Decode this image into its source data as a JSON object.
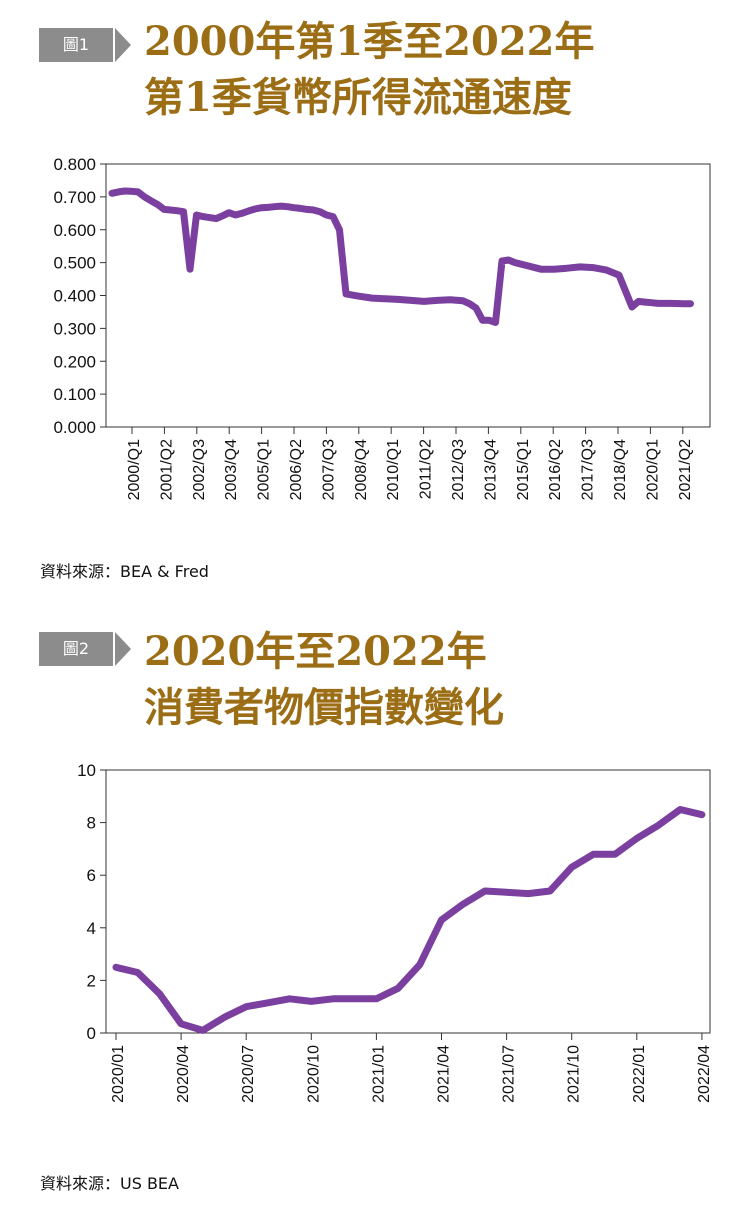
{
  "figures": [
    {
      "tag": "圖1",
      "title_line1": "2000年第1季至2022年",
      "title_line2": "第1季貨幣所得流通速度",
      "source": "資料來源：BEA & Fred"
    },
    {
      "tag": "圖2",
      "title_line1": "2020年至2022年",
      "title_line2": "消費者物價指數變化",
      "source": "資料來源：US BEA"
    }
  ],
  "chart_data": [
    {
      "type": "line",
      "title": "2000年第1季至2022年第1季貨幣所得流通速度",
      "xlabel": "",
      "ylabel": "",
      "ylim": [
        0,
        0.8
      ],
      "yticks": [
        "0.000",
        "0.100",
        "0.200",
        "0.300",
        "0.400",
        "0.500",
        "0.600",
        "0.700",
        "0.800"
      ],
      "categories": [
        "2000/Q1",
        "2001/Q2",
        "2002/Q3",
        "2003/Q4",
        "2005/Q1",
        "2006/Q2",
        "2007/Q3",
        "2008/Q4",
        "2010/Q1",
        "2011/Q2",
        "2012/Q3",
        "2013/Q4",
        "2015/Q1",
        "2016/Q2",
        "2017/Q3",
        "2018/Q4",
        "2020/Q1",
        "2021/Q2"
      ],
      "series_color": "#7b3fa0",
      "series": [
        {
          "name": "",
          "x": [
            2000.0,
            2000.25,
            2000.5,
            2000.75,
            2001.0,
            2001.25,
            2001.5,
            2001.75,
            2002.0,
            2002.25,
            2002.5,
            2002.75,
            2003.0,
            2003.25,
            2003.5,
            2003.75,
            2004.0,
            2004.25,
            2004.5,
            2004.75,
            2005.0,
            2005.25,
            2005.5,
            2005.75,
            2006.0,
            2006.25,
            2006.5,
            2006.75,
            2007.0,
            2007.25,
            2007.5,
            2007.75,
            2008.0,
            2008.25,
            2008.5,
            2008.75,
            2009.0,
            2009.5,
            2010.0,
            2010.5,
            2011.0,
            2011.5,
            2012.0,
            2012.5,
            2013.0,
            2013.5,
            2013.75,
            2014.0,
            2014.25,
            2014.5,
            2014.75,
            2015.0,
            2015.25,
            2015.5,
            2016.0,
            2016.5,
            2017.0,
            2017.5,
            2018.0,
            2018.5,
            2019.0,
            2019.5,
            2020.0,
            2020.25,
            2020.5,
            2020.75,
            2021.0,
            2021.5,
            2022.0,
            2022.25
          ],
          "values": [
            0.711,
            0.715,
            0.718,
            0.717,
            0.715,
            0.7,
            0.688,
            0.677,
            0.662,
            0.66,
            0.658,
            0.655,
            0.48,
            0.645,
            0.64,
            0.637,
            0.634,
            0.642,
            0.652,
            0.645,
            0.65,
            0.657,
            0.663,
            0.667,
            0.668,
            0.67,
            0.672,
            0.67,
            0.667,
            0.665,
            0.662,
            0.66,
            0.655,
            0.645,
            0.64,
            0.6,
            0.405,
            0.398,
            0.392,
            0.39,
            0.388,
            0.385,
            0.382,
            0.385,
            0.387,
            0.384,
            0.375,
            0.362,
            0.325,
            0.325,
            0.318,
            0.505,
            0.508,
            0.5,
            0.49,
            0.48,
            0.48,
            0.483,
            0.487,
            0.485,
            0.478,
            0.462,
            0.365,
            0.382,
            0.38,
            0.378,
            0.376,
            0.376,
            0.375,
            0.375
          ]
        }
      ]
    },
    {
      "type": "line",
      "title": "2020年至2022年消費者物價指數變化",
      "xlabel": "",
      "ylabel": "",
      "ylim": [
        0,
        10
      ],
      "yticks": [
        "0",
        "2",
        "4",
        "6",
        "8",
        "10"
      ],
      "categories": [
        "2020/01",
        "2020/04",
        "2020/07",
        "2020/10",
        "2021/01",
        "2021/04",
        "2021/07",
        "2021/10",
        "2022/01",
        "2022/04"
      ],
      "series_color": "#7b3fa0",
      "series": [
        {
          "name": "",
          "x": [
            "2020/01",
            "2020/02",
            "2020/03",
            "2020/04",
            "2020/05",
            "2020/06",
            "2020/07",
            "2020/08",
            "2020/09",
            "2020/10",
            "2020/11",
            "2020/12",
            "2021/01",
            "2021/02",
            "2021/03",
            "2021/04",
            "2021/05",
            "2021/06",
            "2021/07",
            "2021/08",
            "2021/09",
            "2021/10",
            "2021/11",
            "2021/12",
            "2022/01",
            "2022/02",
            "2022/03",
            "2022/04"
          ],
          "values": [
            2.5,
            2.3,
            1.5,
            0.35,
            0.1,
            0.6,
            1.0,
            1.15,
            1.3,
            1.2,
            1.3,
            1.3,
            1.3,
            1.7,
            2.6,
            4.3,
            4.9,
            5.4,
            5.35,
            5.3,
            5.4,
            6.3,
            6.8,
            6.8,
            7.4,
            7.9,
            8.5,
            8.3
          ]
        }
      ]
    }
  ]
}
